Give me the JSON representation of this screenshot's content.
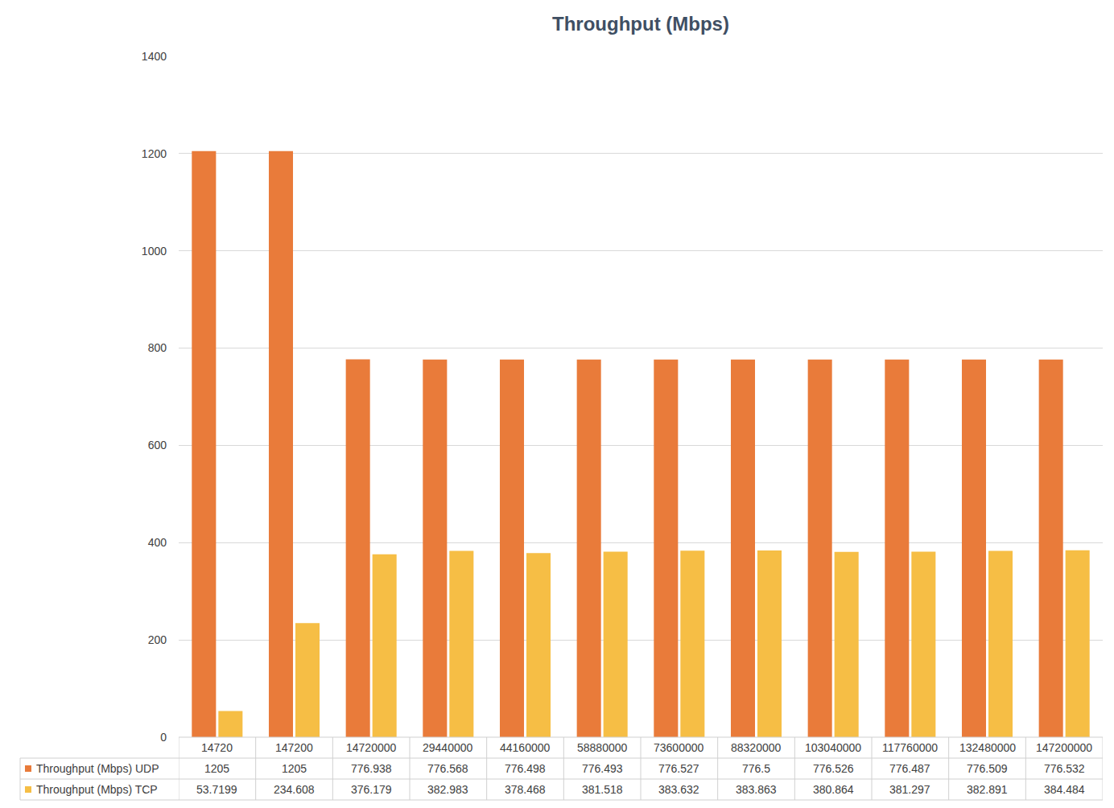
{
  "chart_data": {
    "type": "bar",
    "title": "Throughput (Mbps)",
    "categories": [
      "14720",
      "147200",
      "14720000",
      "29440000",
      "44160000",
      "58880000",
      "73600000",
      "88320000",
      "103040000",
      "117760000",
      "132480000",
      "147200000"
    ],
    "series": [
      {
        "name": "Throughput (Mbps) UDP",
        "color": "#e97b3a",
        "values": [
          1205,
          1205,
          776.938,
          776.568,
          776.498,
          776.493,
          776.527,
          776.5,
          776.526,
          776.487,
          776.509,
          776.532
        ]
      },
      {
        "name": "Throughput (Mbps) TCP",
        "color": "#f6be45",
        "values": [
          53.7199,
          234.608,
          376.179,
          382.983,
          378.468,
          381.518,
          383.632,
          383.863,
          380.864,
          381.297,
          382.891,
          384.484
        ]
      }
    ],
    "ylim": [
      0,
      1400
    ],
    "yticks": [
      0,
      200,
      400,
      600,
      800,
      1000,
      1200,
      1400
    ],
    "grid": true,
    "legend": "bottom",
    "data_labels": true
  }
}
